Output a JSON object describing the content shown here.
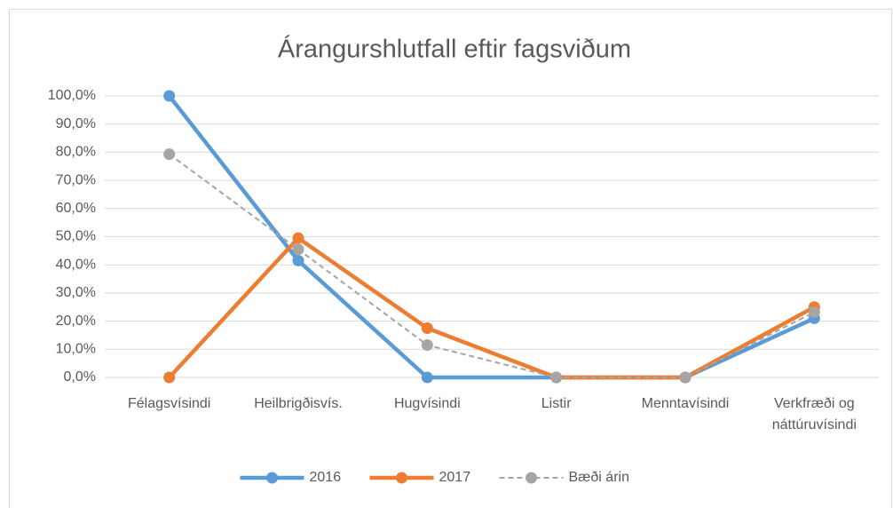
{
  "chart_data": {
    "type": "line",
    "title": "Árangurshlutfall eftir fagsviðum",
    "categories": [
      "Félagsvísindi",
      "Heilbrigðisvís.",
      "Hugvísindi",
      "Listir",
      "Menntavísindi",
      "Verkfræði og náttúruvísindi"
    ],
    "series": [
      {
        "name": "2016",
        "color": "#5b9bd5",
        "linestyle": "solid",
        "values": [
          100,
          41.5,
          0,
          0,
          0,
          21
        ]
      },
      {
        "name": "2017",
        "color": "#ed7d31",
        "linestyle": "solid",
        "values": [
          0,
          49.5,
          17.5,
          0,
          0,
          25
        ]
      },
      {
        "name": "Bæði árin",
        "color": "#a5a5a5",
        "linestyle": "dashed",
        "values": [
          79.3,
          45.5,
          11.5,
          0,
          0,
          23.2
        ]
      }
    ],
    "ylim": [
      0,
      100
    ],
    "yticks": [
      {
        "value": 0,
        "label": "0,0%"
      },
      {
        "value": 10,
        "label": "10,0%"
      },
      {
        "value": 20,
        "label": "20,0%"
      },
      {
        "value": 30,
        "label": "30,0%"
      },
      {
        "value": 40,
        "label": "40,0%"
      },
      {
        "value": 50,
        "label": "50,0%"
      },
      {
        "value": 60,
        "label": "60,0%"
      },
      {
        "value": 70,
        "label": "70,0%"
      },
      {
        "value": 80,
        "label": "80,0%"
      },
      {
        "value": 90,
        "label": "90,0%"
      },
      {
        "value": 100,
        "label": "100,0%"
      }
    ],
    "grid": true,
    "legend": "bottom"
  }
}
